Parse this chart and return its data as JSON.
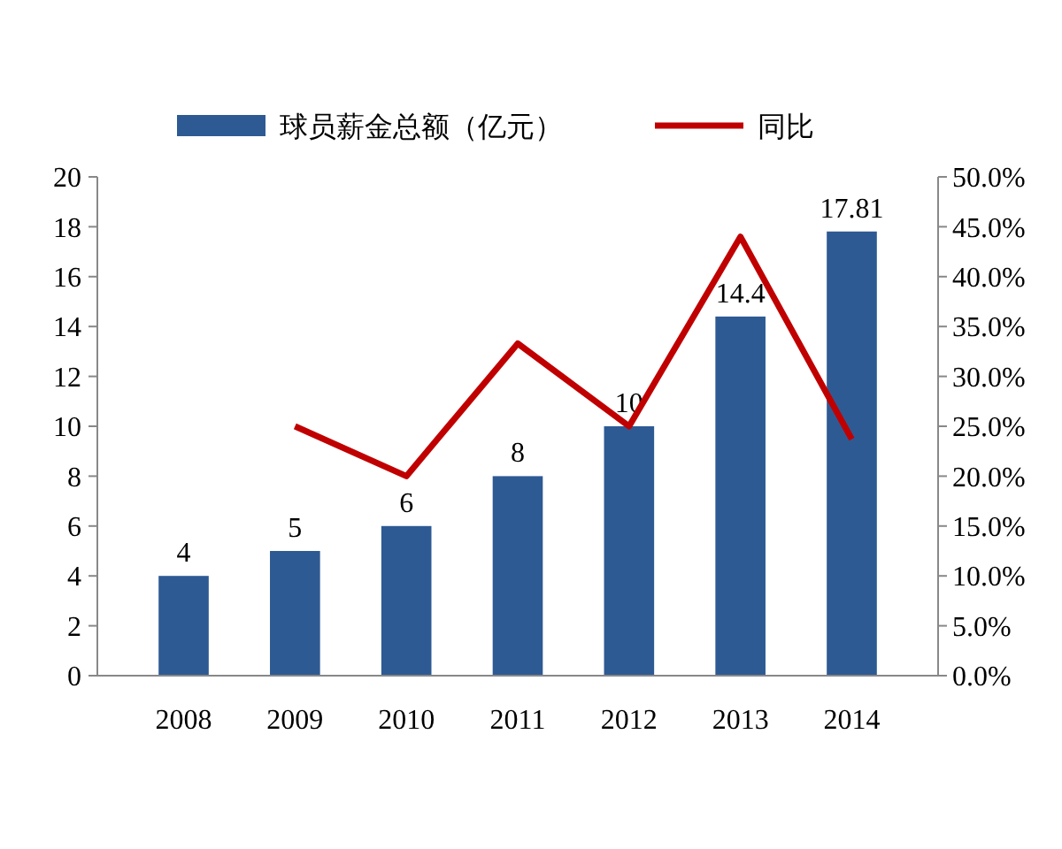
{
  "chart_data": {
    "type": "bar",
    "categories": [
      "2008",
      "2009",
      "2010",
      "2011",
      "2012",
      "2013",
      "2014"
    ],
    "series": [
      {
        "name": "球员薪金总额（亿元）",
        "color": "#2e5a94",
        "values": [
          4,
          5,
          6,
          8,
          10,
          14.4,
          17.81
        ],
        "value_labels": [
          "4",
          "5",
          "6",
          "8",
          "10",
          "14.4",
          "17.81"
        ]
      },
      {
        "name": "同比",
        "type": "line",
        "axis": "y2",
        "color": "#c00000",
        "values": [
          null,
          25,
          20,
          33.3,
          25,
          44,
          23.7
        ]
      }
    ],
    "ylim": [
      0,
      20
    ],
    "yticks": [
      0,
      2,
      4,
      6,
      8,
      10,
      12,
      14,
      16,
      18,
      20
    ],
    "y2lim": [
      0,
      50
    ],
    "y2ticks": [
      {
        "value": 0,
        "label": "0.0%"
      },
      {
        "value": 5,
        "label": "5.0%"
      },
      {
        "value": 10,
        "label": "10.0%"
      },
      {
        "value": 15,
        "label": "15.0%"
      },
      {
        "value": 20,
        "label": "20.0%"
      },
      {
        "value": 25,
        "label": "25.0%"
      },
      {
        "value": 30,
        "label": "30.0%"
      },
      {
        "value": 35,
        "label": "35.0%"
      },
      {
        "value": 40,
        "label": "40.0%"
      },
      {
        "value": 45,
        "label": "45.0%"
      },
      {
        "value": 50,
        "label": "50.0%"
      }
    ],
    "legend": "top",
    "grid": false
  }
}
